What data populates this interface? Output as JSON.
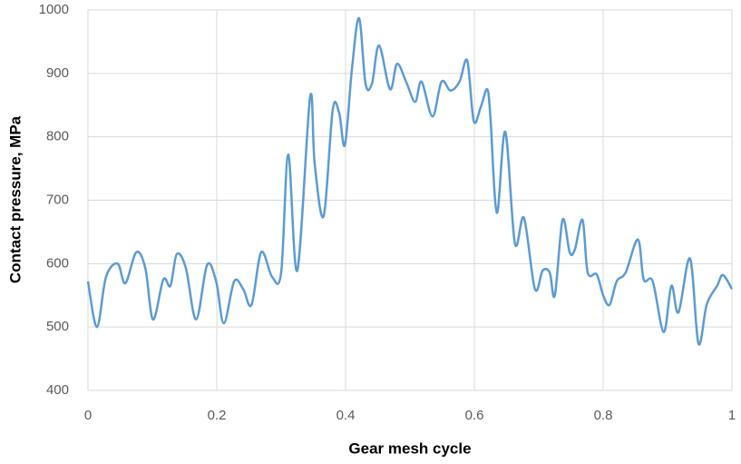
{
  "chart_data": {
    "type": "line",
    "x_label": "Gear mesh cycle",
    "y_label": "Contact pressure, MPa",
    "xlim": [
      0,
      1
    ],
    "xticks": [
      0,
      0.2,
      0.4,
      0.6,
      0.8,
      1
    ],
    "ylim": [
      400,
      1000
    ],
    "yticks": [
      400,
      500,
      600,
      700,
      800,
      900,
      1000
    ],
    "grid": true,
    "series": [
      {
        "color": "#5b9bd5",
        "x": [
          0,
          0.014,
          0.028,
          0.046,
          0.058,
          0.075,
          0.089,
          0.101,
          0.117,
          0.128,
          0.138,
          0.152,
          0.168,
          0.185,
          0.199,
          0.211,
          0.227,
          0.241,
          0.254,
          0.269,
          0.286,
          0.3,
          0.311,
          0.325,
          0.345,
          0.352,
          0.366,
          0.38,
          0.39,
          0.399,
          0.41,
          0.421,
          0.431,
          0.441,
          0.452,
          0.469,
          0.48,
          0.494,
          0.508,
          0.518,
          0.535,
          0.549,
          0.563,
          0.577,
          0.589,
          0.599,
          0.61,
          0.62,
          0.625,
          0.635,
          0.648,
          0.663,
          0.677,
          0.694,
          0.706,
          0.717,
          0.725,
          0.737,
          0.748,
          0.756,
          0.768,
          0.776,
          0.79,
          0.8,
          0.81,
          0.821,
          0.835,
          0.854,
          0.863,
          0.877,
          0.894,
          0.906,
          0.917,
          0.935,
          0.948,
          0.961,
          0.977,
          0.986,
          1.0
        ],
        "values": [
          572,
          500,
          579,
          600,
          569,
          618,
          593,
          512,
          575,
          565,
          615,
          593,
          512,
          598,
          572,
          506,
          572,
          560,
          535,
          618,
          579,
          586,
          772,
          589,
          863,
          758,
          675,
          842,
          838,
          787,
          908,
          987,
          884,
          884,
          944,
          875,
          915,
          887,
          855,
          887,
          832,
          887,
          873,
          887,
          920,
          825,
          847,
          875,
          830,
          680,
          808,
          632,
          672,
          560,
          589,
          586,
          550,
          669,
          618,
          622,
          669,
          586,
          583,
          550,
          535,
          572,
          586,
          638,
          575,
          572,
          492,
          565,
          523,
          608,
          474,
          536,
          565,
          582,
          560
        ]
      }
    ]
  }
}
